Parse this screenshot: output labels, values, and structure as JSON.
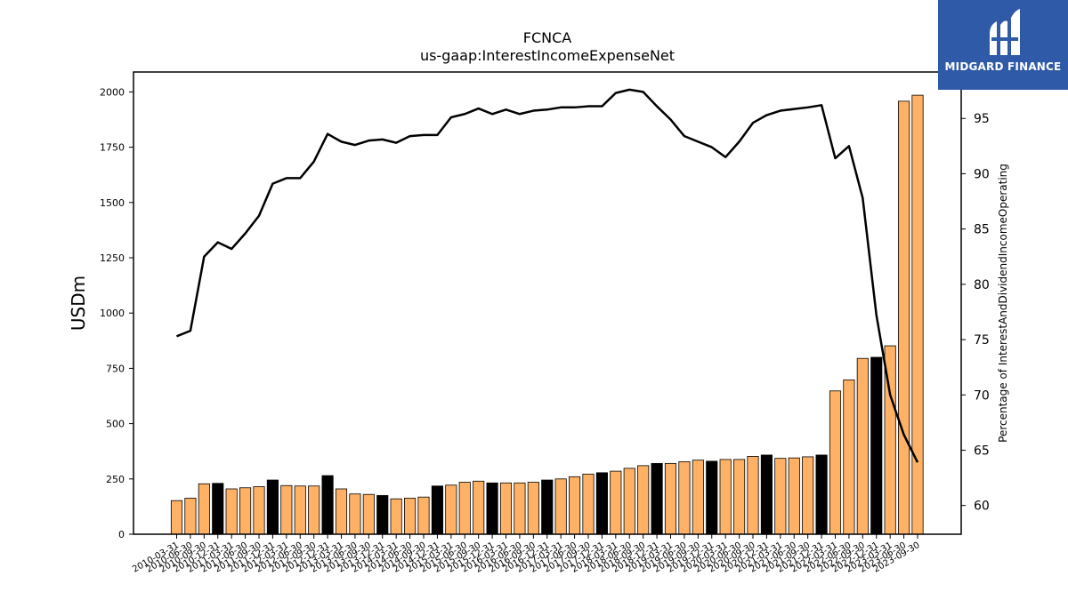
{
  "title": "FCNCA",
  "subtitle": "us-gaap:InterestIncomeExpenseNet",
  "logo": {
    "text": "MIDGARD FINANCE",
    "icon": "midgard-logo-icon",
    "color": "#2f5aa8"
  },
  "chart_data": {
    "type": "bar",
    "title": "FCNCA",
    "subtitle": "us-gaap:InterestIncomeExpenseNet",
    "ylabel": "USDm",
    "y2label": "Percentage of InterestAndDividendIncomeOperating",
    "ylim": [
      0,
      2090
    ],
    "y2lim": [
      57.4,
      99.2
    ],
    "yticks": [
      0,
      250,
      500,
      750,
      1000,
      1250,
      1500,
      1750,
      2000
    ],
    "y2ticks": [
      60,
      65,
      70,
      75,
      80,
      85,
      90,
      95
    ],
    "grid": false,
    "colors": {
      "bar": "#ffb266",
      "bar_q4": "#000000",
      "line": "#000000"
    },
    "categories": [
      "2010-03-31",
      "2010-06-30",
      "2010-09-30",
      "2010-12-31",
      "2011-03-31",
      "2011-06-30",
      "2011-09-30",
      "2011-12-31",
      "2012-03-31",
      "2012-06-30",
      "2012-09-30",
      "2012-12-31",
      "2013-03-31",
      "2013-06-30",
      "2013-09-30",
      "2013-12-31",
      "2014-03-31",
      "2014-06-30",
      "2014-09-30",
      "2014-12-31",
      "2015-03-31",
      "2015-06-30",
      "2015-09-30",
      "2015-12-31",
      "2016-03-31",
      "2016-06-30",
      "2016-09-30",
      "2016-12-31",
      "2017-03-31",
      "2017-06-30",
      "2017-09-30",
      "2017-12-31",
      "2018-03-31",
      "2018-06-30",
      "2018-09-30",
      "2018-12-31",
      "2019-03-31",
      "2019-06-30",
      "2019-09-30",
      "2019-12-31",
      "2020-03-31",
      "2020-06-30",
      "2020-09-30",
      "2020-12-31",
      "2021-03-31",
      "2021-06-30",
      "2021-09-30",
      "2021-12-31",
      "2022-03-31",
      "2022-06-30",
      "2022-09-30",
      "2022-12-31",
      "2023-03-31",
      "2023-06-30",
      "2023-09-30"
    ],
    "series": [
      {
        "kind": "bar",
        "values": [
          152,
          163,
          228,
          230,
          205,
          210,
          215,
          245,
          220,
          218,
          218,
          265,
          205,
          182,
          180,
          175,
          160,
          163,
          168,
          218,
          222,
          235,
          240,
          232,
          232,
          232,
          235,
          245,
          250,
          260,
          272,
          278,
          285,
          298,
          310,
          320,
          320,
          328,
          335,
          330,
          338,
          338,
          352,
          358,
          343,
          345,
          350,
          358,
          648,
          698,
          795,
          800,
          852,
          1958,
          1985
        ]
      },
      {
        "kind": "line",
        "axis": "right",
        "values": [
          75.3,
          75.8,
          82.5,
          83.8,
          83.2,
          84.6,
          86.2,
          89.1,
          89.6,
          89.6,
          91.1,
          93.6,
          92.9,
          92.6,
          93.0,
          93.1,
          92.8,
          93.4,
          93.5,
          93.5,
          95.1,
          95.4,
          95.9,
          95.4,
          95.8,
          95.4,
          95.7,
          95.8,
          96.0,
          96.0,
          96.1,
          96.1,
          97.3,
          97.6,
          97.4,
          96.1,
          94.9,
          93.4,
          92.9,
          92.4,
          91.5,
          92.9,
          94.6,
          95.3,
          95.7,
          95.85,
          96.0,
          96.2,
          91.4,
          92.5,
          87.8,
          77.2,
          70.0,
          66.4,
          63.9
        ]
      }
    ]
  }
}
